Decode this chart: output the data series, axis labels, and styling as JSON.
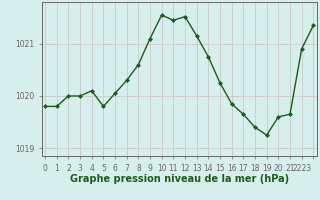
{
  "x": [
    0,
    1,
    2,
    3,
    4,
    5,
    6,
    7,
    8,
    9,
    10,
    11,
    12,
    13,
    14,
    15,
    16,
    17,
    18,
    19,
    20,
    21,
    22,
    23
  ],
  "y": [
    1019.8,
    1019.8,
    1020.0,
    1020.0,
    1020.1,
    1019.8,
    1020.05,
    1020.3,
    1020.6,
    1021.1,
    1021.55,
    1021.45,
    1021.52,
    1021.15,
    1020.75,
    1020.25,
    1019.85,
    1019.65,
    1019.4,
    1019.25,
    1019.6,
    1019.65,
    1020.9,
    1021.35
  ],
  "line_color": "#1a5c1a",
  "marker": "D",
  "marker_size": 2.0,
  "background_color": "#d6efec",
  "grid_color_x": "#c8c8c8",
  "grid_color_y": "#c8c8c8",
  "axis_color": "#666666",
  "xlabel": "Graphe pression niveau de la mer (hPa)",
  "xlabel_fontsize": 7.0,
  "xlabel_color": "#1a5c1a",
  "yticks": [
    1019,
    1020,
    1021
  ],
  "ylim": [
    1018.85,
    1021.8
  ],
  "xlim": [
    -0.3,
    23.3
  ],
  "tick_fontsize": 5.5,
  "linewidth": 1.0
}
